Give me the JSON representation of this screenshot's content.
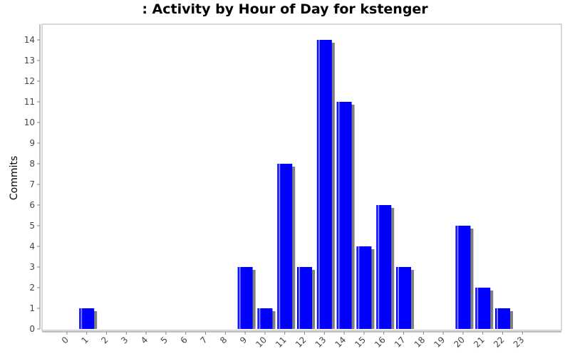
{
  "chart_data": {
    "type": "bar",
    "title": ": Activity by Hour of Day for kstenger",
    "xlabel": "",
    "ylabel": "Commits",
    "categories": [
      "0",
      "1",
      "2",
      "3",
      "4",
      "5",
      "6",
      "7",
      "8",
      "9",
      "10",
      "11",
      "12",
      "13",
      "14",
      "15",
      "16",
      "17",
      "18",
      "19",
      "20",
      "21",
      "22",
      "23"
    ],
    "values": [
      0,
      1,
      0,
      0,
      0,
      0,
      0,
      0,
      0,
      3,
      1,
      8,
      3,
      14,
      11,
      4,
      6,
      3,
      0,
      0,
      5,
      2,
      1,
      0
    ],
    "ylim": [
      0,
      14.6
    ],
    "yticks": [
      0,
      1,
      2,
      3,
      4,
      5,
      6,
      7,
      8,
      9,
      10,
      11,
      12,
      13,
      14
    ],
    "grid": false,
    "colors": {
      "bar": "#0000ff",
      "bar_highlight": "#8080ff",
      "shadow": "#808080",
      "axis": "#808080"
    }
  }
}
